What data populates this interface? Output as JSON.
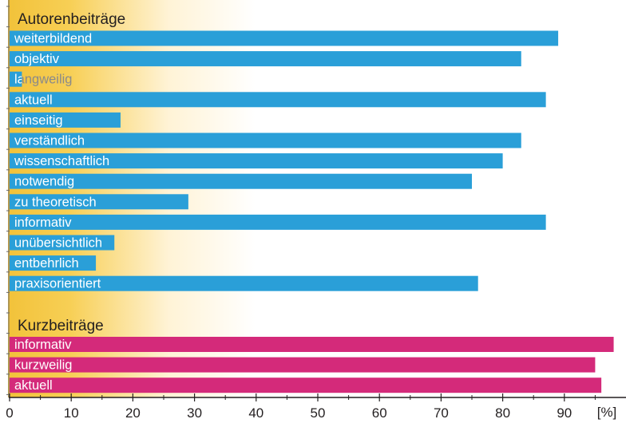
{
  "chart_data": {
    "type": "bar",
    "orientation": "horizontal",
    "xlim": [
      0,
      100
    ],
    "x_ticks": [
      "0",
      "10",
      "20",
      "30",
      "40",
      "50",
      "60",
      "70",
      "80",
      "90"
    ],
    "unit_label": "[%]",
    "grid": false,
    "groups": [
      {
        "title": "Autorenbeiträge",
        "color": "#2a9fd8",
        "categories": [
          "weiterbildend",
          "objektiv",
          "langweilig",
          "aktuell",
          "einseitig",
          "verständlich",
          "wissenschaftlich",
          "notwendig",
          "zu theoretisch",
          "informativ",
          "unübersichtlich",
          "entbehrlich",
          "praxisorientiert"
        ],
        "values": [
          89,
          83,
          2,
          87,
          18,
          83,
          80,
          75,
          29,
          87,
          17,
          14,
          76
        ]
      },
      {
        "title": "Kurzbeiträge",
        "color": "#d42a7a",
        "categories": [
          "informativ",
          "kurzweilig",
          "aktuell"
        ],
        "values": [
          98,
          95,
          96
        ]
      }
    ]
  }
}
